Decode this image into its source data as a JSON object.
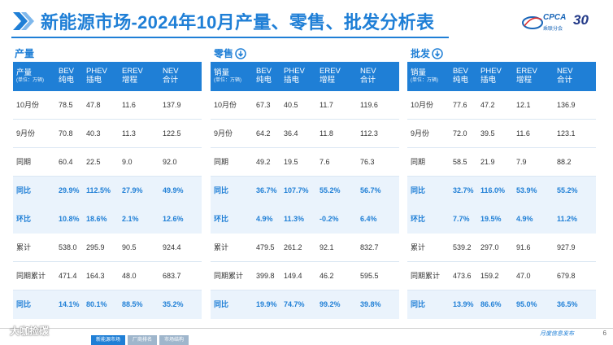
{
  "title": "新能源市场-2024年10月产量、零售、批发分析表",
  "logo": {
    "name": "CPCA",
    "sub": "乘联分会",
    "anniv": "30"
  },
  "sections": [
    {
      "label": "产量",
      "head": [
        "产量",
        "(单位：万辆)",
        "BEV",
        "纯电",
        "PHEV",
        "插电",
        "EREV",
        "增程",
        "NEV",
        "合计"
      ],
      "rows": [
        [
          "10月份",
          "78.5",
          "47.8",
          "11.6",
          "137.9"
        ],
        [
          "9月份",
          "70.8",
          "40.3",
          "11.3",
          "122.5"
        ],
        [
          "同期",
          "60.4",
          "22.5",
          "9.0",
          "92.0"
        ],
        [
          "同比",
          "29.9%",
          "112.5%",
          "27.9%",
          "49.9%"
        ],
        [
          "环比",
          "10.8%",
          "18.6%",
          "2.1%",
          "12.6%"
        ],
        [
          "累计",
          "538.0",
          "295.9",
          "90.5",
          "924.4"
        ],
        [
          "同期累计",
          "471.4",
          "164.3",
          "48.0",
          "683.7"
        ],
        [
          "同比",
          "14.1%",
          "80.1%",
          "88.5%",
          "35.2%"
        ]
      ]
    },
    {
      "label": "零售",
      "head": [
        "销量",
        "(单位：万辆)",
        "BEV",
        "纯电",
        "PHEV",
        "插电",
        "EREV",
        "增程",
        "NEV",
        "合计"
      ],
      "rows": [
        [
          "10月份",
          "67.3",
          "40.5",
          "11.7",
          "119.6"
        ],
        [
          "9月份",
          "64.2",
          "36.4",
          "11.8",
          "112.3"
        ],
        [
          "同期",
          "49.2",
          "19.5",
          "7.6",
          "76.3"
        ],
        [
          "同比",
          "36.7%",
          "107.7%",
          "55.2%",
          "56.7%"
        ],
        [
          "环比",
          "4.9%",
          "11.3%",
          "-0.2%",
          "6.4%"
        ],
        [
          "累计",
          "479.5",
          "261.2",
          "92.1",
          "832.7"
        ],
        [
          "同期累计",
          "399.8",
          "149.4",
          "46.2",
          "595.5"
        ],
        [
          "同比",
          "19.9%",
          "74.7%",
          "99.2%",
          "39.8%"
        ]
      ]
    },
    {
      "label": "批发",
      "head": [
        "销量",
        "(单位：万辆)",
        "BEV",
        "纯电",
        "PHEV",
        "插电",
        "EREV",
        "增程",
        "NEV",
        "合计"
      ],
      "rows": [
        [
          "10月份",
          "77.6",
          "47.2",
          "12.1",
          "136.9"
        ],
        [
          "9月份",
          "72.0",
          "39.5",
          "11.6",
          "123.1"
        ],
        [
          "同期",
          "58.5",
          "21.9",
          "7.9",
          "88.2"
        ],
        [
          "同比",
          "32.7%",
          "116.0%",
          "53.9%",
          "55.2%"
        ],
        [
          "环比",
          "7.7%",
          "19.5%",
          "4.9%",
          "11.2%"
        ],
        [
          "累计",
          "539.2",
          "297.0",
          "91.6",
          "927.9"
        ],
        [
          "同期累计",
          "473.6",
          "159.2",
          "47.0",
          "679.8"
        ],
        [
          "同比",
          "13.9%",
          "86.6%",
          "95.0%",
          "36.5%"
        ]
      ]
    }
  ],
  "footer": {
    "text": "月度信息发布",
    "page": "6",
    "watermark": "大咖捡碳",
    "tabs": [
      "新能源市场",
      "厂商排名",
      "市场结构"
    ]
  },
  "colors": {
    "accent": "#1f7fd6",
    "alt_row": "#eaf3fc"
  }
}
